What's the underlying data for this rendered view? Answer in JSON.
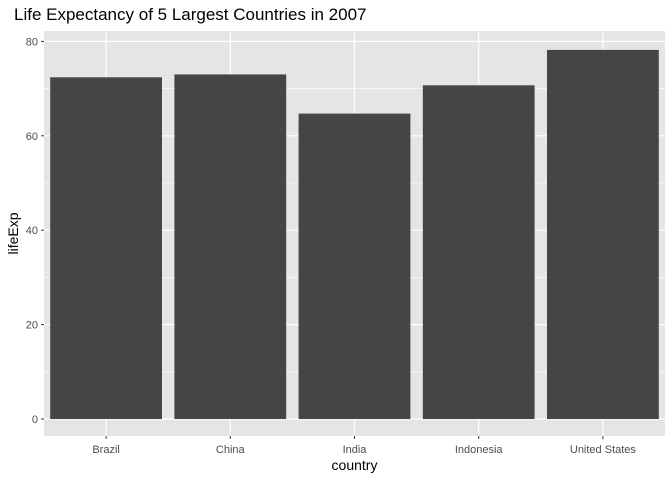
{
  "chart_data": {
    "type": "bar",
    "title": "Life Expectancy of 5 Largest Countries in 2007",
    "xlabel": "country",
    "ylabel": "lifeExp",
    "categories": [
      "Brazil",
      "China",
      "India",
      "Indonesia",
      "United States"
    ],
    "values": [
      72.4,
      73.0,
      64.7,
      70.7,
      78.2
    ],
    "ylim": [
      0,
      82
    ],
    "yticks": [
      0,
      20,
      40,
      60,
      80
    ],
    "grid": true,
    "legend": "none",
    "colors": {
      "panel_background": "#e5e5e5",
      "grid": "#ffffff",
      "bar_fill": "#454545",
      "tick_text": "#4d4d4d",
      "tick_mark": "#333333"
    }
  }
}
